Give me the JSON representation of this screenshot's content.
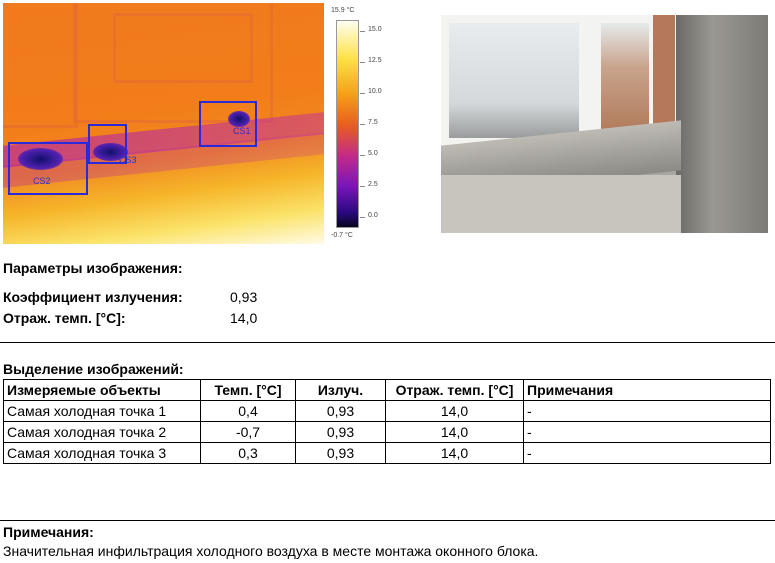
{
  "thermal_image": {
    "scale_max": "15.9 °C",
    "scale_min": "-0.7 °C",
    "scale_ticks": [
      "15.0",
      "12.5",
      "10.0",
      "7.5",
      "5.0",
      "2.5",
      "0.0"
    ],
    "markers": [
      "CS1",
      "CS2",
      "CS3"
    ],
    "palette": [
      "#fffef0",
      "#fde24a",
      "#f5a21c",
      "#e8601e",
      "#c02a8a",
      "#7a16b8",
      "#2a0a80",
      "#05051a"
    ]
  },
  "params": {
    "title": "Параметры изображения:",
    "rows": [
      {
        "label": "Коэффициент излучения:",
        "value": "0,93"
      },
      {
        "label": "Отраж. темп. [°C]:",
        "value": "14,0"
      }
    ]
  },
  "selection": {
    "title": "Выделение изображений:",
    "headers": [
      "Измеряемые объекты",
      "Темп. [°C]",
      "Излуч.",
      "Отраж. темп. [°C]",
      "Примечания"
    ],
    "rows": [
      [
        "Самая холодная точка 1",
        "0,4",
        "0,93",
        "14,0",
        "-"
      ],
      [
        "Самая холодная точка 2",
        "-0,7",
        "0,93",
        "14,0",
        "-"
      ],
      [
        "Самая холодная точка 3",
        "0,3",
        "0,93",
        "14,0",
        "-"
      ]
    ]
  },
  "notes": {
    "title": "Примечания:",
    "text": "Значительная инфильтрация холодного воздуха в месте монтажа оконного блока."
  }
}
